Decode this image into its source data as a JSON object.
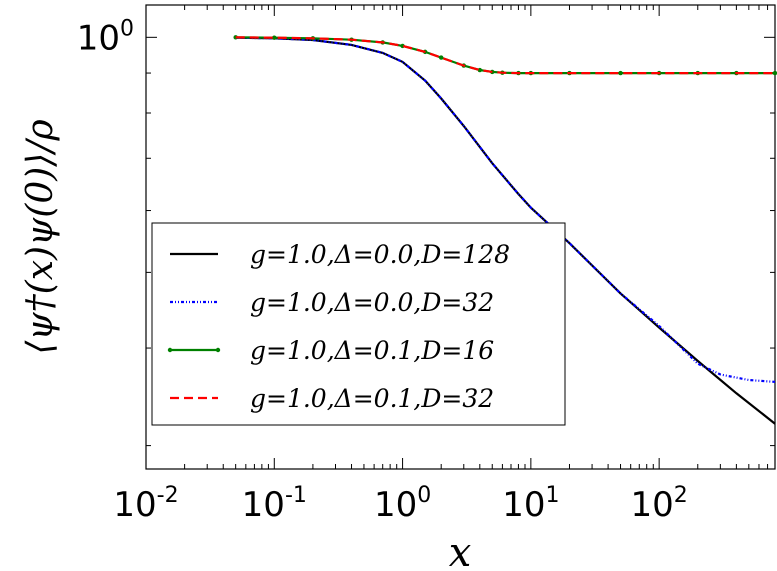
{
  "chart_data": {
    "type": "line",
    "xlabel": "x",
    "ylabel": "⟨ψ†(x)ψ(0)⟩/ρ",
    "x_scale": "log",
    "y_scale": "log",
    "xlim": [
      0.01,
      800
    ],
    "ylim": [
      0.28,
      1.1
    ],
    "x_ticks": [
      {
        "value": 0.01,
        "base": "10",
        "exp": "-2"
      },
      {
        "value": 0.1,
        "base": "10",
        "exp": "-1"
      },
      {
        "value": 1,
        "base": "10",
        "exp": "0"
      },
      {
        "value": 10,
        "base": "10",
        "exp": "1"
      },
      {
        "value": 100,
        "base": "10",
        "exp": "2"
      }
    ],
    "y_ticks": [
      {
        "value": 1,
        "base": "10",
        "exp": "0"
      }
    ],
    "legend_position": "lower-left",
    "series": [
      {
        "name": "g=1.0,Δ=0.0,D=128",
        "color": "#000000",
        "style": "solid",
        "x": [
          0.05,
          0.1,
          0.2,
          0.4,
          0.7,
          1,
          1.5,
          2,
          3,
          5,
          8,
          10,
          20,
          50,
          100,
          200,
          400,
          800
        ],
        "y": [
          0.999,
          0.997,
          0.992,
          0.978,
          0.955,
          0.93,
          0.88,
          0.835,
          0.77,
          0.69,
          0.63,
          0.605,
          0.545,
          0.47,
          0.425,
          0.385,
          0.35,
          0.32
        ]
      },
      {
        "name": "g=1.0,Δ=0.0,D=32",
        "color": "#0000ff",
        "style": "dashdot",
        "x": [
          0.05,
          0.1,
          0.2,
          0.4,
          0.7,
          1,
          1.5,
          2,
          3,
          5,
          8,
          10,
          20,
          50,
          100,
          150,
          200,
          300,
          500,
          800
        ],
        "y": [
          0.999,
          0.997,
          0.992,
          0.978,
          0.955,
          0.93,
          0.88,
          0.835,
          0.77,
          0.69,
          0.63,
          0.605,
          0.545,
          0.47,
          0.427,
          0.4,
          0.382,
          0.37,
          0.364,
          0.362
        ]
      },
      {
        "name": "g=1.0,Δ=0.1,D=16",
        "color": "#008000",
        "style": "solid-dots",
        "x": [
          0.05,
          0.1,
          0.2,
          0.4,
          0.7,
          1,
          1.5,
          2,
          3,
          4,
          5,
          6,
          8,
          10,
          20,
          50,
          100,
          200,
          400,
          800
        ],
        "y": [
          1.0,
          0.999,
          0.997,
          0.993,
          0.985,
          0.975,
          0.958,
          0.942,
          0.92,
          0.908,
          0.903,
          0.901,
          0.9,
          0.9,
          0.9,
          0.9,
          0.9,
          0.9,
          0.9,
          0.9
        ]
      },
      {
        "name": "g=1.0,Δ=0.1,D=32",
        "color": "#ff0000",
        "style": "dashed",
        "x": [
          0.05,
          0.1,
          0.2,
          0.4,
          0.7,
          1,
          1.5,
          2,
          3,
          4,
          5,
          6,
          8,
          10,
          20,
          50,
          100,
          200,
          400,
          800
        ],
        "y": [
          1.0,
          0.999,
          0.997,
          0.993,
          0.985,
          0.975,
          0.958,
          0.942,
          0.92,
          0.908,
          0.903,
          0.901,
          0.9,
          0.9,
          0.9,
          0.9,
          0.9,
          0.9,
          0.9,
          0.9
        ]
      }
    ]
  }
}
